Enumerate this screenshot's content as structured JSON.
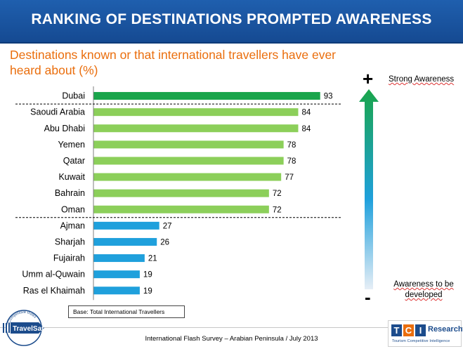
{
  "header": {
    "title": "RANKING OF DESTINATIONS PROMPTED AWARENESS"
  },
  "subtitle": "Destinations known or that international travellers have ever heard about (%)",
  "chart_data": {
    "type": "bar",
    "orientation": "horizontal",
    "categories": [
      "Dubai",
      "Saoudi Arabia",
      "Abu Dhabi",
      "Yemen",
      "Qatar",
      "Kuwait",
      "Bahrain",
      "Oman",
      "Ajman",
      "Sharjah",
      "Fujairah",
      "Umm al-Quwain",
      "Ras el Khaimah"
    ],
    "values": [
      93,
      84,
      84,
      78,
      78,
      77,
      72,
      72,
      27,
      26,
      21,
      19,
      19
    ],
    "bar_colors": [
      "#1aa54b",
      "#8ccf5a",
      "#8ccf5a",
      "#8ccf5a",
      "#8ccf5a",
      "#8ccf5a",
      "#8ccf5a",
      "#8ccf5a",
      "#1fa0dc",
      "#1fa0dc",
      "#1fa0dc",
      "#1fa0dc",
      "#1fa0dc"
    ],
    "group_separators_after": [
      "Dubai",
      "Oman"
    ],
    "xlim": [
      0,
      100
    ],
    "show_data_labels": true,
    "grid": false,
    "legend": "none"
  },
  "awareness": {
    "plus": "+",
    "minus": "-",
    "strong_label": "Strong Awareness",
    "weak_label_line1": "Awareness to be",
    "weak_label_line2": "developed",
    "arrow_colors": [
      "#1aa54b",
      "#1fa0dc",
      "#e6eef6"
    ]
  },
  "base_note": "Base: Total International Travellers",
  "footer": {
    "text": "International Flash Survey – Arabian Peninsula / July 2013"
  },
  "logos": {
    "left": {
      "brand": "TravelSat",
      "arc_text": "Competitive Index"
    },
    "right": {
      "letters": [
        "T",
        "C",
        "I"
      ],
      "name": "Research",
      "tagline": "Tourism Competitive Intelligence"
    }
  },
  "colors": {
    "header_blue": "#1a56a3",
    "subtitle_orange": "#ea6e0d"
  }
}
